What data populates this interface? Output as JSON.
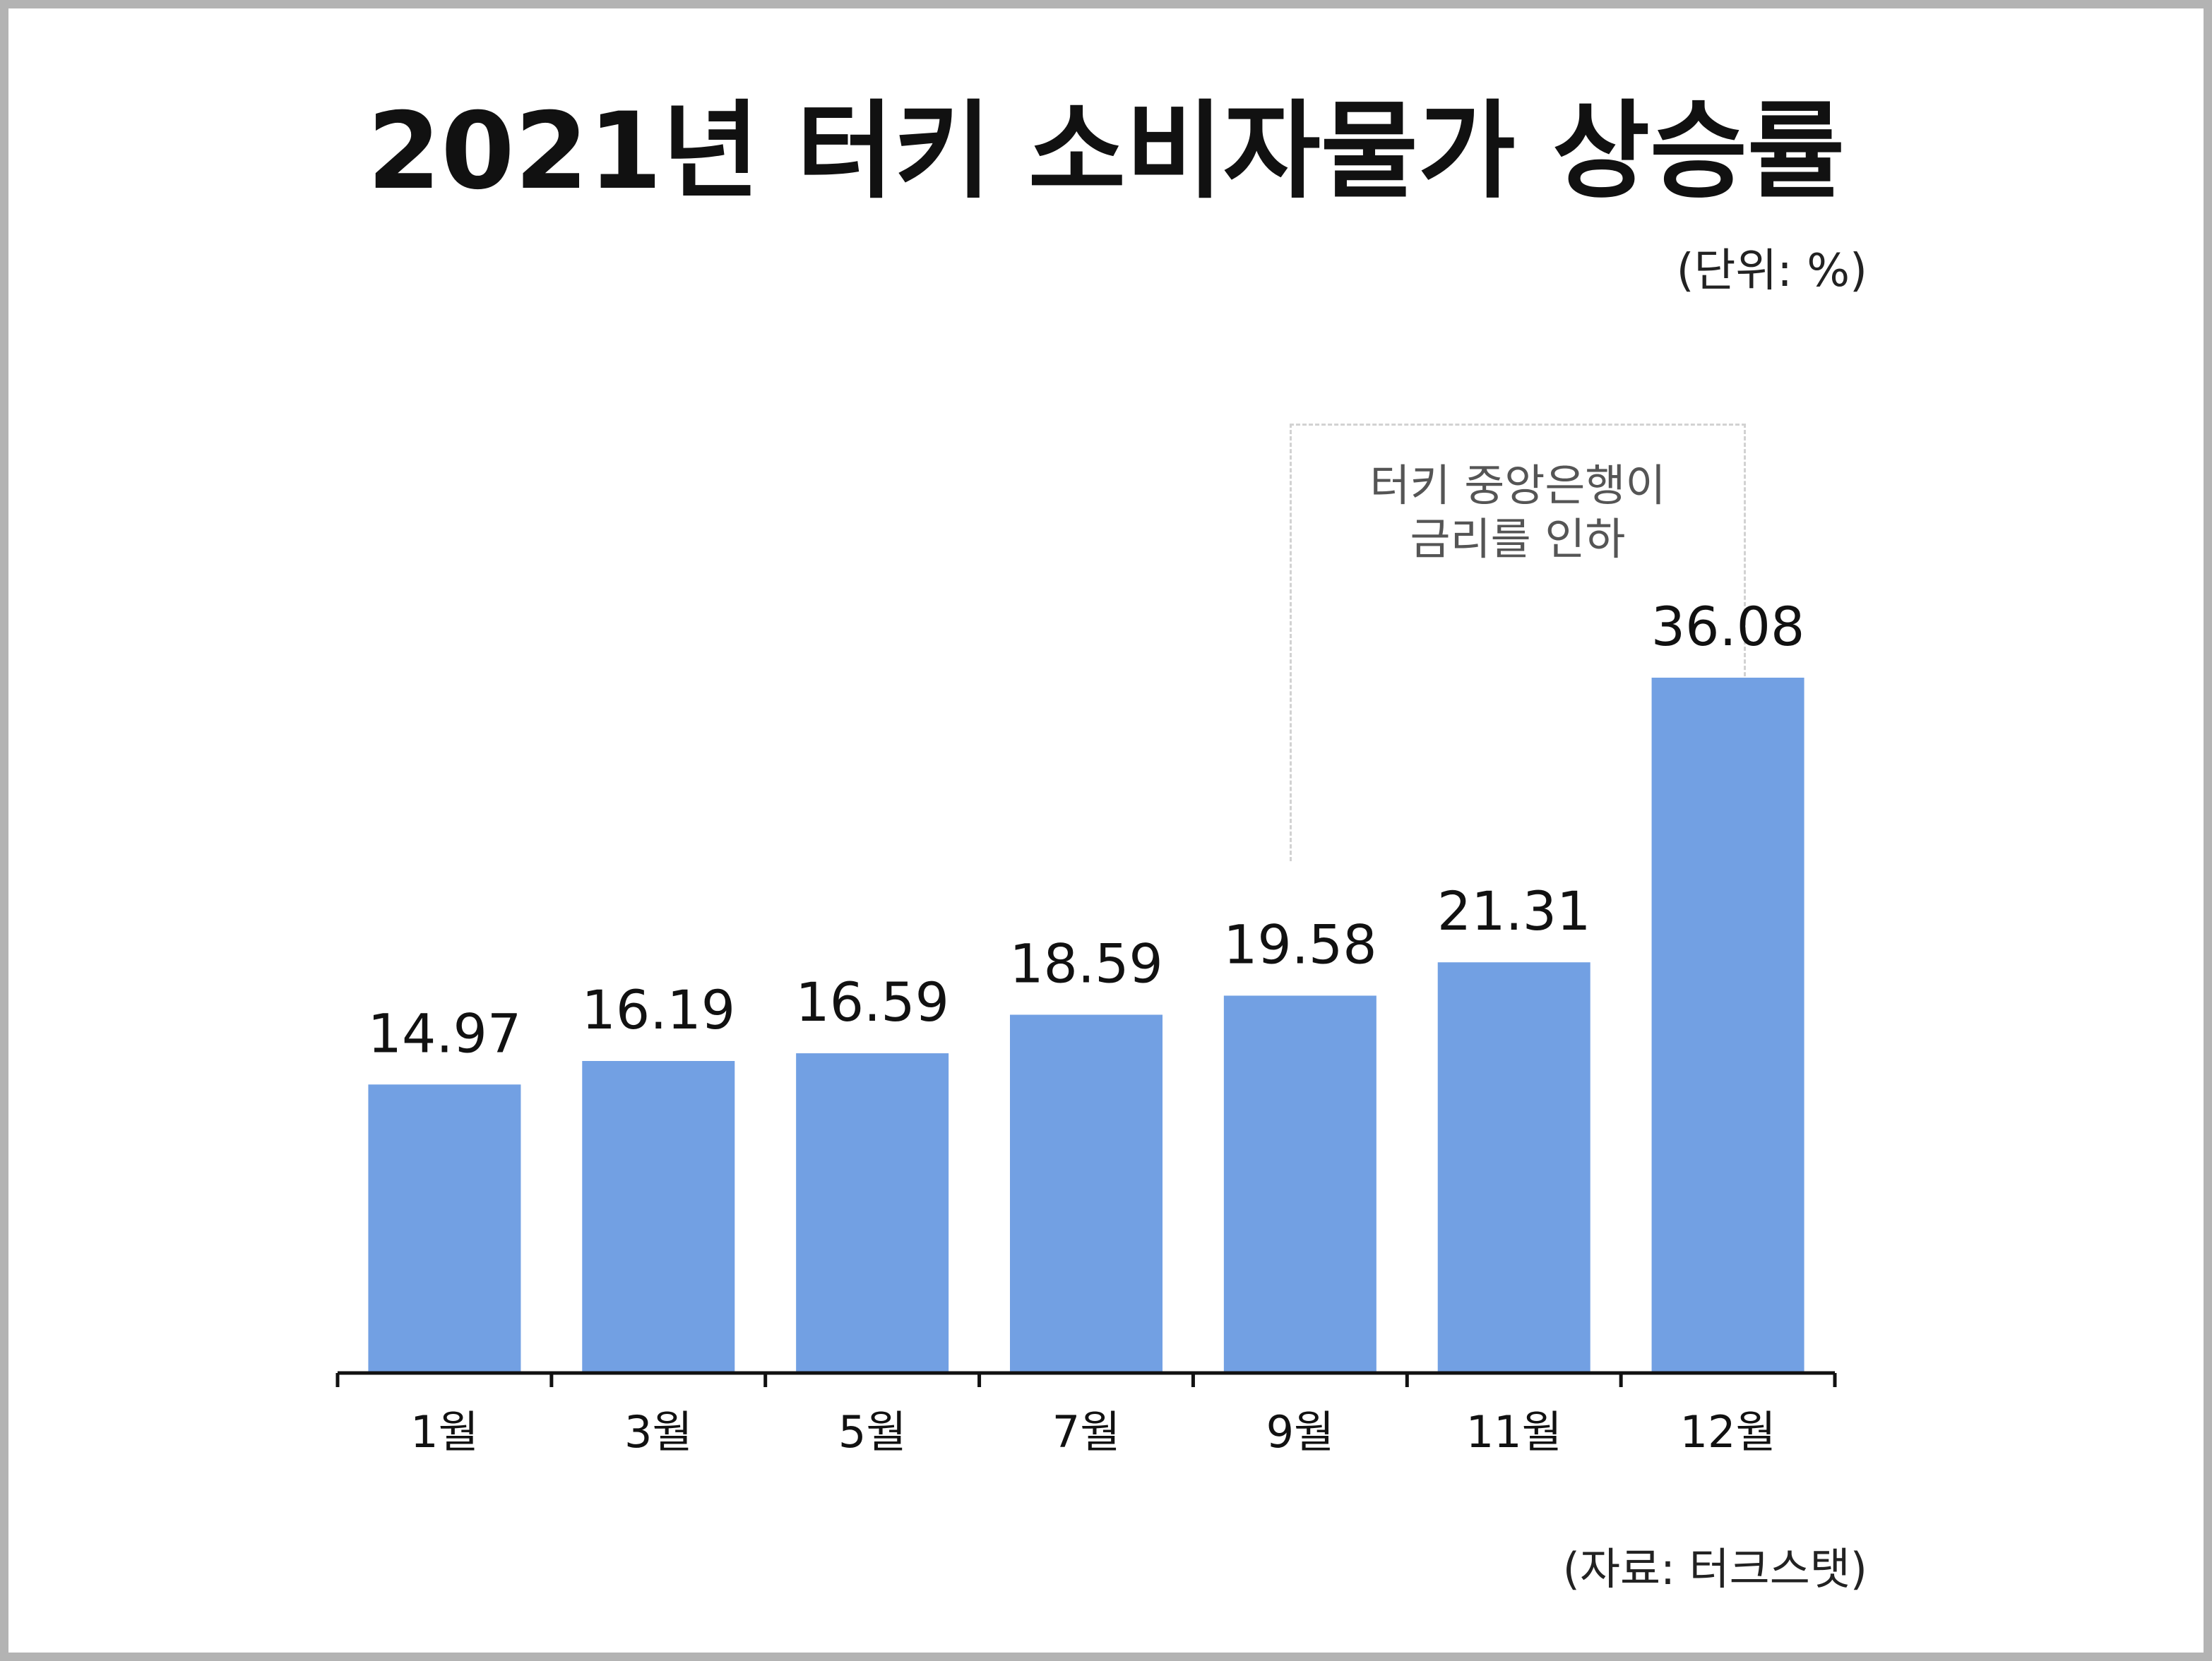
{
  "chart_data": {
    "type": "bar",
    "title": "2021년 터키 소비자물가 상승률",
    "unit_label": "(단위: %)",
    "categories": [
      "1월",
      "3월",
      "5월",
      "7월",
      "9월",
      "11월",
      "12월"
    ],
    "values": [
      14.97,
      16.19,
      16.59,
      18.59,
      19.58,
      21.31,
      36.08
    ],
    "value_labels": [
      "14.97",
      "16.19",
      "16.59",
      "18.59",
      "19.58",
      "21.31",
      "36.08"
    ],
    "ylim": [
      0,
      36.08
    ],
    "grid": false,
    "bar_color": "#72a0e3",
    "annotation": {
      "text": "터키 중앙은행이\n금리를 인하",
      "spans": [
        "9월",
        "12월"
      ]
    },
    "source": "(자료: 터크스탯)"
  }
}
